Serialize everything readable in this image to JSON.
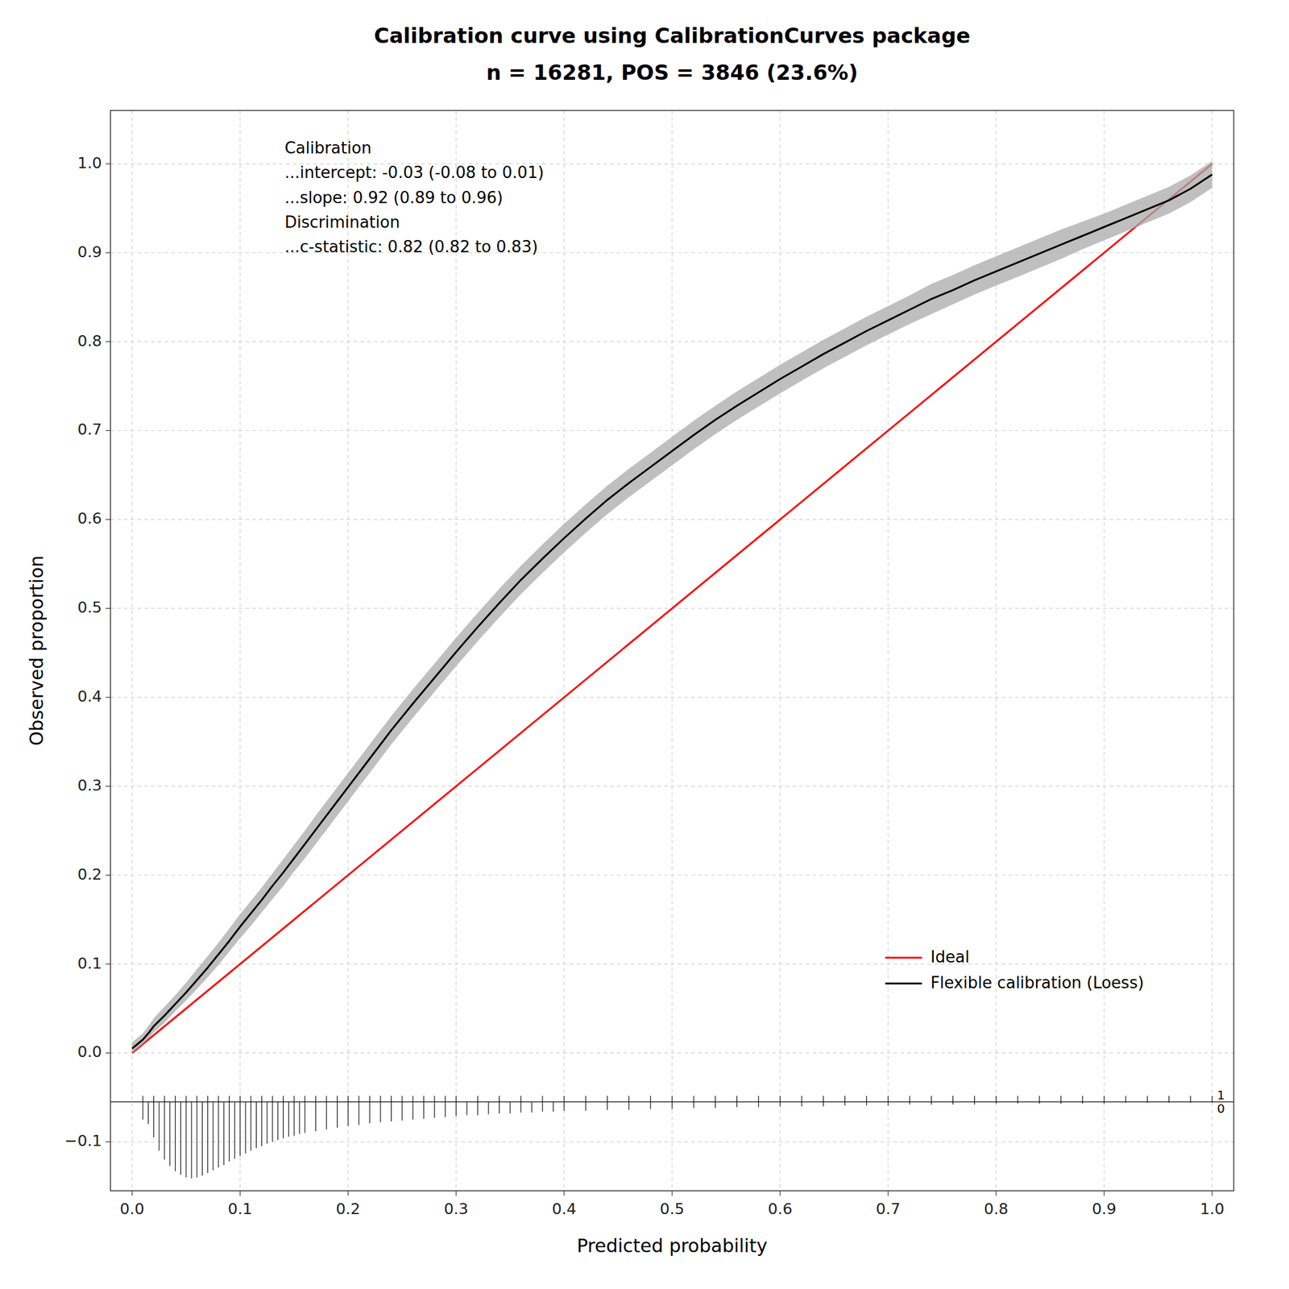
{
  "chart_data": {
    "type": "line",
    "title": "Calibration curve using CalibrationCurves package",
    "subtitle": "n = 16281, POS = 3846 (23.6%)",
    "x_label": "Predicted probability",
    "y_label": "Observed proportion",
    "xlim": [
      -0.02,
      1.02
    ],
    "ylim": [
      -0.155,
      1.06
    ],
    "xticks": [
      {
        "value": 0.0,
        "label": "0.0"
      },
      0.1,
      0.2,
      0.3,
      0.4,
      0.5,
      0.6,
      0.7,
      0.8,
      0.9,
      {
        "value": 1.0,
        "label": "1.0"
      }
    ],
    "yticks": [
      {
        "value": -0.1,
        "label": "−0.1"
      },
      {
        "value": 0.0,
        "label": "0.0"
      },
      0.1,
      0.2,
      0.3,
      0.4,
      0.5,
      0.6,
      0.7,
      0.8,
      0.9,
      {
        "value": 1.0,
        "label": "1.0"
      }
    ],
    "grid": true,
    "legend": "lower right",
    "annotations": [
      "Calibration",
      "...intercept: -0.03 (-0.08 to 0.01)",
      "...slope: 0.92 (0.89 to 0.96)",
      "Discrimination",
      "...c-statistic: 0.82 (0.82 to 0.83)"
    ],
    "series": [
      {
        "name": "Ideal",
        "type": "line",
        "color": "#FF0000",
        "x": [
          0,
          1
        ],
        "values": [
          0,
          1
        ]
      },
      {
        "type": "band",
        "color": "#AAAAAA",
        "x": [
          0.0,
          0.005,
          0.01,
          0.015,
          0.02,
          0.03,
          0.04,
          0.05,
          0.06,
          0.07,
          0.08,
          0.09,
          0.1,
          0.11,
          0.12,
          0.13,
          0.14,
          0.15,
          0.16,
          0.17,
          0.18,
          0.19,
          0.2,
          0.22,
          0.24,
          0.26,
          0.28,
          0.3,
          0.32,
          0.34,
          0.36,
          0.38,
          0.4,
          0.42,
          0.44,
          0.46,
          0.48,
          0.5,
          0.52,
          0.54,
          0.56,
          0.58,
          0.6,
          0.62,
          0.64,
          0.66,
          0.68,
          0.7,
          0.72,
          0.74,
          0.76,
          0.78,
          0.8,
          0.82,
          0.84,
          0.86,
          0.88,
          0.9,
          0.92,
          0.94,
          0.96,
          0.98,
          1.0
        ],
        "lower": [
          0.0,
          0.005,
          0.01,
          0.016,
          0.023,
          0.034,
          0.047,
          0.059,
          0.072,
          0.085,
          0.099,
          0.114,
          0.129,
          0.143,
          0.158,
          0.173,
          0.188,
          0.204,
          0.219,
          0.235,
          0.251,
          0.267,
          0.283,
          0.315,
          0.347,
          0.377,
          0.406,
          0.435,
          0.463,
          0.49,
          0.516,
          0.54,
          0.563,
          0.585,
          0.606,
          0.625,
          0.643,
          0.661,
          0.679,
          0.696,
          0.712,
          0.727,
          0.742,
          0.756,
          0.77,
          0.783,
          0.796,
          0.808,
          0.82,
          0.831,
          0.842,
          0.853,
          0.863,
          0.873,
          0.883,
          0.893,
          0.904,
          0.914,
          0.924,
          0.934,
          0.944,
          0.957,
          0.973
        ],
        "upper": [
          0.012,
          0.017,
          0.022,
          0.03,
          0.039,
          0.052,
          0.065,
          0.079,
          0.094,
          0.109,
          0.124,
          0.14,
          0.156,
          0.171,
          0.186,
          0.202,
          0.218,
          0.234,
          0.25,
          0.267,
          0.283,
          0.299,
          0.315,
          0.347,
          0.379,
          0.409,
          0.438,
          0.467,
          0.495,
          0.522,
          0.548,
          0.572,
          0.595,
          0.617,
          0.638,
          0.657,
          0.675,
          0.693,
          0.711,
          0.728,
          0.744,
          0.759,
          0.774,
          0.788,
          0.802,
          0.815,
          0.828,
          0.84,
          0.852,
          0.865,
          0.875,
          0.886,
          0.896,
          0.906,
          0.916,
          0.926,
          0.935,
          0.944,
          0.954,
          0.964,
          0.974,
          0.987,
          1.003
        ]
      },
      {
        "name": "Flexible calibration (Loess)",
        "type": "line",
        "color": "#000000",
        "x": [
          0.0,
          0.005,
          0.01,
          0.015,
          0.02,
          0.03,
          0.04,
          0.05,
          0.06,
          0.07,
          0.08,
          0.09,
          0.1,
          0.11,
          0.12,
          0.13,
          0.14,
          0.15,
          0.16,
          0.17,
          0.18,
          0.19,
          0.2,
          0.22,
          0.24,
          0.26,
          0.28,
          0.3,
          0.32,
          0.34,
          0.36,
          0.38,
          0.4,
          0.42,
          0.44,
          0.46,
          0.48,
          0.5,
          0.52,
          0.54,
          0.56,
          0.58,
          0.6,
          0.62,
          0.64,
          0.66,
          0.68,
          0.7,
          0.72,
          0.74,
          0.76,
          0.78,
          0.8,
          0.82,
          0.84,
          0.86,
          0.88,
          0.9,
          0.92,
          0.94,
          0.96,
          0.98,
          1.0
        ],
        "values": [
          0.005,
          0.01,
          0.015,
          0.022,
          0.03,
          0.042,
          0.055,
          0.068,
          0.082,
          0.096,
          0.111,
          0.126,
          0.142,
          0.157,
          0.172,
          0.188,
          0.203,
          0.219,
          0.235,
          0.251,
          0.267,
          0.283,
          0.299,
          0.331,
          0.363,
          0.393,
          0.422,
          0.451,
          0.479,
          0.506,
          0.532,
          0.556,
          0.579,
          0.601,
          0.622,
          0.641,
          0.659,
          0.677,
          0.695,
          0.712,
          0.728,
          0.743,
          0.758,
          0.772,
          0.786,
          0.799,
          0.812,
          0.824,
          0.836,
          0.848,
          0.858,
          0.869,
          0.879,
          0.889,
          0.899,
          0.909,
          0.919,
          0.929,
          0.939,
          0.949,
          0.959,
          0.972,
          0.988
        ]
      }
    ],
    "rug": {
      "baseline": -0.055,
      "labels": [
        "1",
        "0"
      ],
      "negative_x": [
        0.01,
        0.015,
        0.02,
        0.025,
        0.03,
        0.035,
        0.04,
        0.045,
        0.05,
        0.055,
        0.06,
        0.065,
        0.07,
        0.075,
        0.08,
        0.085,
        0.09,
        0.095,
        0.1,
        0.105,
        0.11,
        0.115,
        0.12,
        0.125,
        0.13,
        0.135,
        0.14,
        0.145,
        0.15,
        0.155,
        0.16,
        0.17,
        0.18,
        0.19,
        0.2,
        0.21,
        0.22,
        0.23,
        0.24,
        0.25,
        0.26,
        0.27,
        0.28,
        0.29,
        0.3,
        0.31,
        0.32,
        0.33,
        0.34,
        0.35,
        0.36,
        0.37,
        0.38,
        0.39,
        0.4,
        0.42,
        0.44,
        0.46,
        0.48,
        0.5,
        0.52,
        0.54,
        0.56,
        0.58,
        0.6,
        0.62,
        0.64,
        0.66,
        0.68,
        0.7,
        0.72,
        0.74,
        0.76,
        0.78,
        0.8,
        0.82,
        0.84,
        0.86,
        0.88,
        0.9,
        0.92,
        0.94,
        0.96,
        0.98,
        1.0
      ],
      "negative_heights": [
        0.02,
        0.025,
        0.04,
        0.055,
        0.065,
        0.072,
        0.078,
        0.082,
        0.085,
        0.086,
        0.085,
        0.083,
        0.08,
        0.077,
        0.074,
        0.071,
        0.067,
        0.064,
        0.061,
        0.058,
        0.055,
        0.052,
        0.05,
        0.047,
        0.045,
        0.043,
        0.041,
        0.039,
        0.038,
        0.036,
        0.035,
        0.033,
        0.031,
        0.029,
        0.027,
        0.026,
        0.024,
        0.023,
        0.022,
        0.021,
        0.02,
        0.019,
        0.018,
        0.017,
        0.016,
        0.015,
        0.015,
        0.014,
        0.013,
        0.013,
        0.012,
        0.012,
        0.011,
        0.011,
        0.01,
        0.01,
        0.009,
        0.009,
        0.008,
        0.008,
        0.007,
        0.007,
        0.006,
        0.006,
        0.005,
        0.005,
        0.005,
        0.004,
        0.004,
        0.004,
        0.003,
        0.003,
        0.003,
        0.003,
        0.002,
        0.002,
        0.002,
        0.002,
        0.002,
        0.002,
        0.001,
        0.001,
        0.001,
        0.001,
        0.001
      ],
      "positive_x": [
        0.01,
        0.02,
        0.03,
        0.04,
        0.05,
        0.06,
        0.07,
        0.08,
        0.09,
        0.1,
        0.11,
        0.12,
        0.13,
        0.14,
        0.15,
        0.16,
        0.17,
        0.18,
        0.19,
        0.2,
        0.21,
        0.22,
        0.23,
        0.24,
        0.25,
        0.26,
        0.27,
        0.28,
        0.29,
        0.3,
        0.32,
        0.34,
        0.36,
        0.38,
        0.4,
        0.42,
        0.44,
        0.46,
        0.48,
        0.5,
        0.52,
        0.54,
        0.56,
        0.58,
        0.6,
        0.62,
        0.64,
        0.66,
        0.68,
        0.7,
        0.72,
        0.74,
        0.76,
        0.78,
        0.8,
        0.82,
        0.84,
        0.86,
        0.88,
        0.9,
        0.92,
        0.94,
        0.96,
        0.98,
        1.0
      ]
    }
  }
}
